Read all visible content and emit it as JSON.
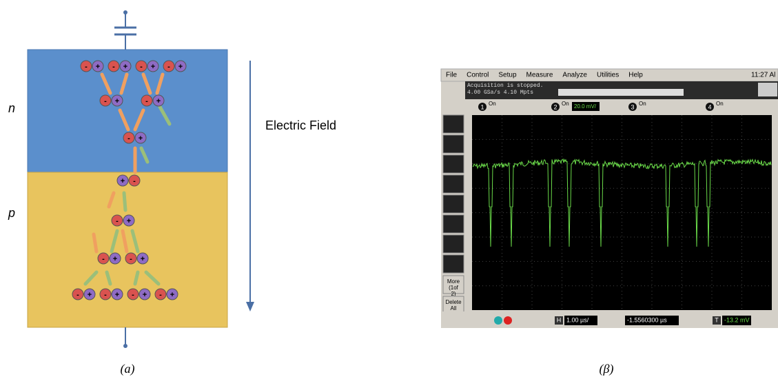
{
  "diagram": {
    "region_n": "n",
    "region_p": "p",
    "field_label": "Electric Field",
    "caption": "(a)",
    "electron_sign": "-",
    "hole_sign": "+"
  },
  "scope": {
    "menu": [
      "File",
      "Control",
      "Setup",
      "Measure",
      "Analyze",
      "Utilities",
      "Help"
    ],
    "clock": "11:27 Al",
    "status": [
      "Acquisition is stopped.",
      "4.00 GSa/s   4.10 Mpts"
    ],
    "channels": [
      {
        "num": "1",
        "state": "On"
      },
      {
        "num": "2",
        "state": "On",
        "scale": "20.0 mV/"
      },
      {
        "num": "3",
        "state": "On"
      },
      {
        "num": "4",
        "state": "On"
      }
    ],
    "side_buttons": [
      "More (1of 2)",
      "Delete All"
    ],
    "horizontal": {
      "key": "H",
      "scale": "1.00 µs/"
    },
    "delay": "-1.5560300 µs",
    "trigger": {
      "key": "T",
      "level": "-13.2 mV"
    },
    "caption": "(β)"
  }
}
